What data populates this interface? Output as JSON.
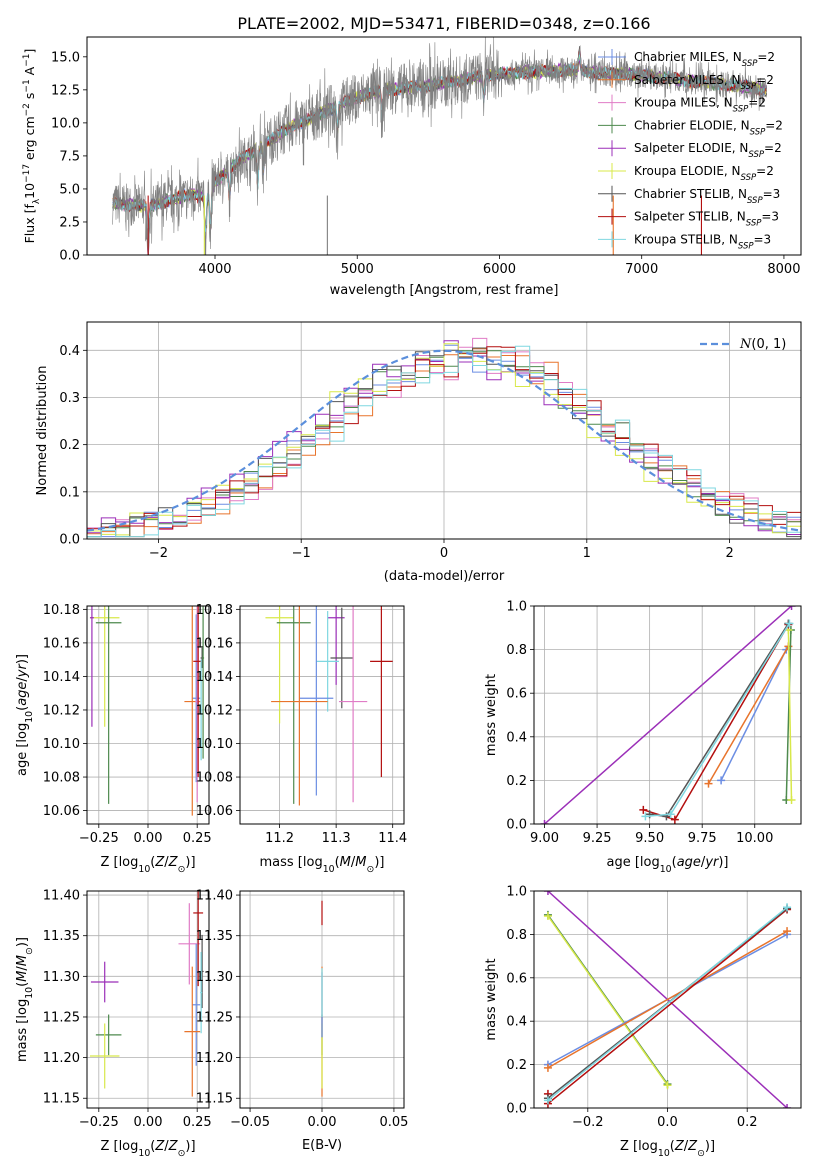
{
  "colors": {
    "chabrier_miles": "#6b8de3",
    "salpeter_miles": "#e8742c",
    "kroupa_miles": "#e07cc6",
    "chabrier_elodie": "#4e8a4e",
    "salpeter_elodie": "#9b2fb8",
    "kroupa_elodie": "#d8e84a",
    "chabrier_stelib": "#555555",
    "salpeter_stelib": "#b30f0f",
    "kroupa_stelib": "#7fd7e0",
    "gauss": "#5b8fdc",
    "data": "#808080"
  },
  "chart_data": [
    {
      "id": "spectrum",
      "type": "line",
      "title": "PLATE=2002, MJD=53471, FIBERID=0348, z=0.166",
      "xlabel": "wavelength [Angstrom, rest frame]",
      "ylabel": "Flux [fλ10⁻¹⁷ erg cm⁻² s⁻¹ A⁻¹]",
      "xlim": [
        3100,
        8120
      ],
      "ylim": [
        0,
        16.5
      ],
      "xticks": [
        4000,
        5000,
        6000,
        7000,
        8000
      ],
      "yticks": [
        0.0,
        2.5,
        5.0,
        7.5,
        10.0,
        12.5,
        15.0
      ],
      "grid": false,
      "legend_position": "top-right",
      "continuum": {
        "x": [
          3280,
          3400,
          3550,
          3700,
          3850,
          3950,
          4000,
          4150,
          4300,
          4500,
          4700,
          4900,
          5100,
          5300,
          5500,
          5700,
          5900,
          6100,
          6300,
          6500,
          6700,
          6900,
          7100,
          7300,
          7500,
          7700,
          7880
        ],
        "y": [
          3.9,
          3.8,
          3.7,
          4.2,
          4.6,
          4.3,
          5.5,
          7.0,
          8.0,
          9.5,
          10.5,
          11.5,
          12.3,
          12.6,
          12.8,
          13.2,
          13.6,
          13.8,
          13.9,
          14.0,
          13.8,
          13.7,
          13.5,
          13.2,
          13.0,
          12.8,
          12.5
        ]
      },
      "series": [
        {
          "name": "Chabrier MILES, N_SSP=2",
          "label_main": "Chabrier MILES, N",
          "label_sub": "SSP",
          "label_tail": "=2",
          "color_key": "chabrier_miles"
        },
        {
          "name": "Salpeter MILES, N_SSP=2",
          "label_main": "Salpeter MILES, N",
          "label_sub": "SSP",
          "label_tail": "=2",
          "color_key": "salpeter_miles"
        },
        {
          "name": "Kroupa MILES, N_SSP=2",
          "label_main": "Kroupa MILES, N",
          "label_sub": "SSP",
          "label_tail": "=2",
          "color_key": "kroupa_miles"
        },
        {
          "name": "Chabrier ELODIE, N_SSP=2",
          "label_main": "Chabrier ELODIE, N",
          "label_sub": "SSP",
          "label_tail": "=2",
          "color_key": "chabrier_elodie"
        },
        {
          "name": "Salpeter ELODIE, N_SSP=2",
          "label_main": "Salpeter ELODIE, N",
          "label_sub": "SSP",
          "label_tail": "=2",
          "color_key": "salpeter_elodie"
        },
        {
          "name": "Kroupa ELODIE, N_SSP=2",
          "label_main": "Kroupa ELODIE, N",
          "label_sub": "SSP",
          "label_tail": "=2",
          "color_key": "kroupa_elodie"
        },
        {
          "name": "Chabrier STELIB, N_SSP=3",
          "label_main": "Chabrier STELIB, N",
          "label_sub": "SSP",
          "label_tail": "=3",
          "color_key": "chabrier_stelib"
        },
        {
          "name": "Salpeter STELIB, N_SSP=3",
          "label_main": "Salpeter STELIB, N",
          "label_sub": "SSP",
          "label_tail": "=3",
          "color_key": "salpeter_stelib"
        },
        {
          "name": "Kroupa STELIB, N_SSP=3",
          "label_main": "Kroupa STELIB, N",
          "label_sub": "SSP",
          "label_tail": "=3",
          "color_key": "kroupa_stelib"
        }
      ]
    },
    {
      "id": "residuals",
      "type": "histogram",
      "xlabel": "(data-model)/error",
      "ylabel": "Normed distribution",
      "xlim": [
        -2.5,
        2.5
      ],
      "ylim": [
        0,
        0.46
      ],
      "xticks": [
        -2,
        -1,
        0,
        1,
        2
      ],
      "yticks": [
        0.0,
        0.1,
        0.2,
        0.3,
        0.4
      ],
      "grid": true,
      "legend_position": "top-right",
      "legend_label": "N(0, 1)",
      "bin_width": 0.1
    },
    {
      "id": "z_age",
      "type": "errorbar",
      "xlabel": "Z [log10(Z/Z⊙)]",
      "ylabel": "age [log10(age/yr)]",
      "xlim": [
        -0.31,
        0.31
      ],
      "ylim": [
        10.052,
        10.182
      ],
      "xticks": [
        -0.25,
        0.0,
        0.25
      ],
      "yticks": [
        10.06,
        10.08,
        10.1,
        10.12,
        10.14,
        10.16,
        10.18
      ],
      "grid": true,
      "points": [
        {
          "color_key": "kroupa_elodie",
          "x": -0.22,
          "y": 10.175,
          "xerr": 0.075,
          "yerr": 0.065
        },
        {
          "color_key": "chabrier_elodie",
          "x": -0.2,
          "y": 10.172,
          "xerr": 0.065,
          "yerr": 0.108
        },
        {
          "color_key": "salpeter_elodie",
          "x": -0.285,
          "y": 10.175,
          "xerr": 0.01,
          "yerr": 0.065
        },
        {
          "color_key": "chabrier_miles",
          "x": 0.245,
          "y": 10.127,
          "xerr": 0.02,
          "yerr": 0.05
        },
        {
          "color_key": "salpeter_miles",
          "x": 0.225,
          "y": 10.125,
          "xerr": 0.04,
          "yerr": 0.068
        },
        {
          "color_key": "kroupa_miles",
          "x": 0.25,
          "y": 10.125,
          "xerr": 0.01,
          "yerr": 0.06
        },
        {
          "color_key": "salpeter_stelib",
          "x": 0.255,
          "y": 10.149,
          "xerr": 0.025,
          "yerr": 0.069
        },
        {
          "color_key": "chabrier_stelib",
          "x": 0.275,
          "y": 10.151,
          "xerr": 0.008,
          "yerr": 0.006
        },
        {
          "color_key": "chabrier_elodie",
          "x": 0.28,
          "y": 10.151,
          "xerr": 0.005,
          "yerr": 0.06
        },
        {
          "color_key": "kroupa_stelib",
          "x": 0.27,
          "y": 10.12,
          "xerr": 0.005,
          "yerr": 0.03
        }
      ]
    },
    {
      "id": "mass_age",
      "type": "errorbar",
      "xlabel": "mass [log10(M/M⊙)]",
      "xlim": [
        11.13,
        11.42
      ],
      "ylim": [
        10.052,
        10.182
      ],
      "xticks": [
        11.2,
        11.3,
        11.4
      ],
      "yticks": [
        10.06,
        10.08,
        10.1,
        10.12,
        10.14,
        10.16,
        10.18
      ],
      "grid": true,
      "points": [
        {
          "color_key": "kroupa_elodie",
          "x": 11.2,
          "y": 10.175,
          "xerr": 0.025,
          "yerr": 0.063
        },
        {
          "color_key": "chabrier_elodie",
          "x": 11.225,
          "y": 10.172,
          "xerr": 0.03,
          "yerr": 0.108
        },
        {
          "color_key": "salpeter_elodie",
          "x": 11.3,
          "y": 10.175,
          "xerr": 0.015,
          "yerr": 0.04
        },
        {
          "color_key": "chabrier_stelib",
          "x": 11.31,
          "y": 10.151,
          "xerr": 0.02,
          "yerr": 0.03
        },
        {
          "color_key": "salpeter_stelib",
          "x": 11.38,
          "y": 10.149,
          "xerr": 0.02,
          "yerr": 0.069
        },
        {
          "color_key": "kroupa_stelib",
          "x": 11.285,
          "y": 10.149,
          "xerr": 0.02,
          "yerr": 0.03
        },
        {
          "color_key": "chabrier_miles",
          "x": 11.265,
          "y": 10.127,
          "xerr": 0.03,
          "yerr": 0.058
        },
        {
          "color_key": "salpeter_miles",
          "x": 11.235,
          "y": 10.125,
          "xerr": 0.05,
          "yerr": 0.062
        },
        {
          "color_key": "kroupa_miles",
          "x": 11.33,
          "y": 10.125,
          "xerr": 0.025,
          "yerr": 0.06
        }
      ]
    },
    {
      "id": "age_weight",
      "type": "line",
      "xlabel": "age [log10(age/yr)]",
      "ylabel": "mass weight",
      "xlim": [
        8.95,
        10.22
      ],
      "ylim": [
        0,
        1.0
      ],
      "xticks": [
        9.0,
        9.25,
        9.5,
        9.75,
        10.0
      ],
      "yticks": [
        0.0,
        0.2,
        0.4,
        0.6,
        0.8,
        1.0
      ],
      "grid": true,
      "series": [
        {
          "color_key": "salpeter_elodie",
          "x": [
            9.0,
            10.175
          ],
          "y": [
            0.0,
            1.0
          ]
        },
        {
          "color_key": "chabrier_miles",
          "x": [
            9.84,
            10.15
          ],
          "y": [
            0.2,
            0.8
          ]
        },
        {
          "color_key": "salpeter_miles",
          "x": [
            9.78,
            10.16
          ],
          "y": [
            0.185,
            0.815
          ]
        },
        {
          "color_key": "chabrier_elodie",
          "x": [
            10.15,
            10.172
          ],
          "y": [
            0.11,
            0.89
          ]
        },
        {
          "color_key": "kroupa_elodie",
          "x": [
            10.175,
            10.16
          ],
          "y": [
            0.11,
            0.89
          ]
        },
        {
          "color_key": "salpeter_stelib",
          "x": [
            9.47,
            9.62,
            10.16
          ],
          "y": [
            0.065,
            0.02,
            0.915
          ]
        },
        {
          "color_key": "chabrier_stelib",
          "x": [
            9.5,
            9.58,
            10.16
          ],
          "y": [
            0.045,
            0.035,
            0.92
          ]
        },
        {
          "color_key": "kroupa_stelib",
          "x": [
            9.48,
            9.6,
            10.165
          ],
          "y": [
            0.035,
            0.045,
            0.92
          ]
        }
      ]
    },
    {
      "id": "z_mass",
      "type": "errorbar",
      "xlabel": "Z [log10(Z/Z⊙)]",
      "ylabel": "mass [log10(M/M⊙)]",
      "xlim": [
        -0.31,
        0.31
      ],
      "ylim": [
        11.138,
        11.405
      ],
      "xticks": [
        -0.25,
        0.0,
        0.25
      ],
      "yticks": [
        11.15,
        11.2,
        11.25,
        11.3,
        11.35,
        11.4
      ],
      "grid": true,
      "points": [
        {
          "color_key": "salpeter_elodie",
          "x": -0.22,
          "y": 11.293,
          "xerr": 0.07,
          "yerr": 0.025
        },
        {
          "color_key": "chabrier_elodie",
          "x": -0.2,
          "y": 11.228,
          "xerr": 0.065,
          "yerr": 0.025
        },
        {
          "color_key": "kroupa_elodie",
          "x": -0.22,
          "y": 11.202,
          "xerr": 0.075,
          "yerr": 0.04
        },
        {
          "color_key": "kroupa_miles",
          "x": 0.21,
          "y": 11.34,
          "xerr": 0.055,
          "yerr": 0.05
        },
        {
          "color_key": "salpeter_stelib",
          "x": 0.255,
          "y": 11.378,
          "xerr": 0.025,
          "yerr": 0.09
        },
        {
          "color_key": "chabrier_stelib",
          "x": 0.275,
          "y": 11.306,
          "xerr": 0.008,
          "yerr": 0.045
        },
        {
          "color_key": "chabrier_miles",
          "x": 0.245,
          "y": 11.265,
          "xerr": 0.02,
          "yerr": 0.075
        },
        {
          "color_key": "salpeter_miles",
          "x": 0.225,
          "y": 11.232,
          "xerr": 0.04,
          "yerr": 0.08
        },
        {
          "color_key": "kroupa_stelib",
          "x": 0.27,
          "y": 11.28,
          "xerr": 0.005,
          "yerr": 0.05
        }
      ]
    },
    {
      "id": "ebv_mass",
      "type": "errorbar",
      "xlabel": "E(B-V)",
      "xlim": [
        -0.057,
        0.057
      ],
      "ylim": [
        11.138,
        11.405
      ],
      "xticks": [
        -0.05,
        0.0,
        0.05
      ],
      "yticks": [
        11.15,
        11.2,
        11.25,
        11.3,
        11.35,
        11.4
      ],
      "grid": true,
      "points": [
        {
          "color_key": "salpeter_miles",
          "x": 0.0,
          "y": 11.232,
          "xerr": 0.0,
          "yerr": 0.08
        },
        {
          "color_key": "chabrier_elodie",
          "x": 0.0,
          "y": 11.228,
          "xerr": 0.0,
          "yerr": 0.025
        },
        {
          "color_key": "kroupa_elodie",
          "x": 0.0,
          "y": 11.202,
          "xerr": 0.0,
          "yerr": 0.04
        },
        {
          "color_key": "salpeter_stelib",
          "x": 0.0,
          "y": 11.378,
          "xerr": 0.0,
          "yerr": 0.015
        },
        {
          "color_key": "chabrier_miles",
          "x": 0.0,
          "y": 11.265,
          "xerr": 0.0,
          "yerr": 0.04
        },
        {
          "color_key": "kroupa_stelib",
          "x": 0.0,
          "y": 11.28,
          "xerr": 0.0,
          "yerr": 0.03
        }
      ]
    },
    {
      "id": "z_weight",
      "type": "line",
      "xlabel": "Z [log10(Z/Z⊙)]",
      "ylabel": "mass weight",
      "xlim": [
        -0.335,
        0.335
      ],
      "ylim": [
        0,
        1.0
      ],
      "xticks": [
        -0.2,
        0.0,
        0.2
      ],
      "yticks": [
        0.0,
        0.2,
        0.4,
        0.6,
        0.8,
        1.0
      ],
      "grid": true,
      "series": [
        {
          "color_key": "salpeter_elodie",
          "x": [
            -0.3,
            0.3
          ],
          "y": [
            1.0,
            0.0
          ]
        },
        {
          "color_key": "chabrier_elodie",
          "x": [
            -0.3,
            0.0
          ],
          "y": [
            0.89,
            0.11
          ]
        },
        {
          "color_key": "kroupa_elodie",
          "x": [
            -0.3,
            0.0
          ],
          "y": [
            0.885,
            0.105
          ]
        },
        {
          "color_key": "chabrier_miles",
          "x": [
            -0.3,
            0.3
          ],
          "y": [
            0.2,
            0.8
          ]
        },
        {
          "color_key": "salpeter_miles",
          "x": [
            -0.3,
            0.3
          ],
          "y": [
            0.185,
            0.815
          ]
        },
        {
          "color_key": "salpeter_stelib",
          "x": [
            -0.3,
            -0.3,
            0.3
          ],
          "y": [
            0.065,
            0.02,
            0.915
          ]
        },
        {
          "color_key": "chabrier_stelib",
          "x": [
            -0.3,
            0.3
          ],
          "y": [
            0.045,
            0.92
          ]
        },
        {
          "color_key": "kroupa_stelib",
          "x": [
            -0.3,
            0.3
          ],
          "y": [
            0.035,
            0.925
          ]
        }
      ]
    }
  ]
}
